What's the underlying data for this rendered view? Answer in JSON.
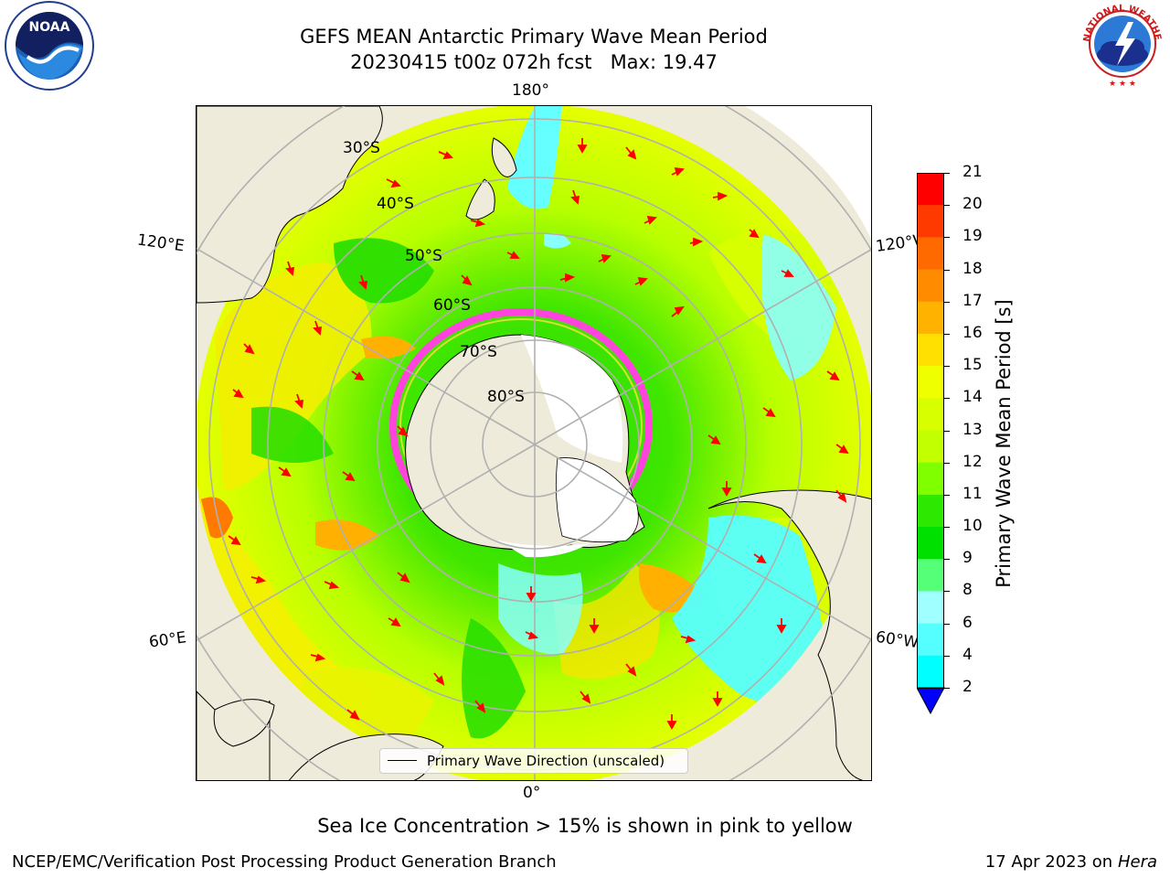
{
  "title": {
    "line1": "GEFS MEAN Antarctic Primary Wave Mean Period",
    "line2": "20230415 t00z 072h fcst   Max: 19.47"
  },
  "map": {
    "meridian_labels": {
      "top": "180°",
      "bottom": "0°",
      "left_upper": "120°E",
      "left_lower": "60°E",
      "right_upper": "120°W",
      "right_lower": "60°W"
    },
    "latitude_labels": [
      "30°S",
      "40°S",
      "50°S",
      "60°S",
      "70°S",
      "80°S"
    ],
    "legend_label": "Primary Wave Direction (unscaled)"
  },
  "colorbar": {
    "label": "Primary Wave Mean Period [s]",
    "ticks": [
      "21",
      "20",
      "19",
      "18",
      "17",
      "16",
      "15",
      "14",
      "13",
      "12",
      "11",
      "10",
      "9",
      "8",
      "6",
      "4",
      "2"
    ],
    "colors": [
      "#ff0000",
      "#ff3a00",
      "#ff6a00",
      "#ff8c00",
      "#ffb300",
      "#ffe000",
      "#f0ff00",
      "#d7ff00",
      "#c2ff00",
      "#7fff00",
      "#2de800",
      "#00e000",
      "#55ff77",
      "#a0ffff",
      "#55ffff",
      "#00ffff",
      "#00c8ff",
      "#0080ff",
      "#0000ff"
    ]
  },
  "notes": {
    "sea_ice": "Sea Ice Concentration > 15% is shown in pink to yellow"
  },
  "footer": {
    "left": "NCEP/EMC/Verification Post Processing Product Generation Branch",
    "right_prefix": "17 Apr 2023 on ",
    "right_italic": "Hera"
  },
  "logos": {
    "noaa_text": "NOAA",
    "nws_text": "NATIONAL WEATHER SERVICE"
  }
}
